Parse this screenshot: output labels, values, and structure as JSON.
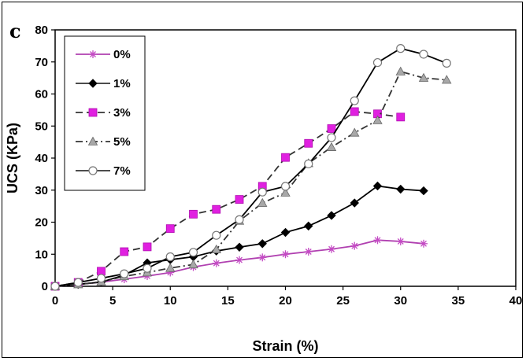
{
  "chart_data": {
    "type": "line",
    "panel_label": "c",
    "xlabel": "Strain (%)",
    "ylabel": "UCS (KPa)",
    "xlim": [
      0,
      40
    ],
    "ylim": [
      0,
      80
    ],
    "x_ticks": [
      "0",
      "5",
      "10",
      "15",
      "20",
      "25",
      "30",
      "35",
      "40"
    ],
    "y_ticks": [
      "0",
      "10",
      "20",
      "30",
      "40",
      "50",
      "60",
      "70",
      "80"
    ],
    "grid": false,
    "legend_position": "top-left",
    "series": [
      {
        "name": "0%",
        "color": "#c44bc4",
        "marker": "asterisk",
        "dash": "solid",
        "x": [
          0,
          2,
          4,
          6,
          8,
          10,
          12,
          14,
          16,
          18,
          20,
          22,
          24,
          26,
          28,
          30,
          32
        ],
        "y": [
          0,
          0.6,
          1.3,
          2.2,
          3.2,
          4.3,
          6.0,
          7.2,
          8.2,
          9.0,
          10.0,
          10.8,
          11.6,
          12.6,
          14.4,
          14.0,
          13.3
        ]
      },
      {
        "name": "1%",
        "color": "#000000",
        "marker": "diamond",
        "dash": "solid",
        "x": [
          0,
          2,
          4,
          6,
          8,
          10,
          12,
          14,
          16,
          18,
          20,
          22,
          24,
          26,
          28,
          30,
          32
        ],
        "y": [
          0,
          0.6,
          1.3,
          3.5,
          7.3,
          8.3,
          9.2,
          11.0,
          12.2,
          13.3,
          16.8,
          18.8,
          22.1,
          26.0,
          31.3,
          30.3,
          29.8
        ]
      },
      {
        "name": "3%",
        "color": "#e020e0",
        "marker": "square",
        "dash": "dash",
        "x": [
          0,
          2,
          4,
          6,
          8,
          10,
          12,
          14,
          16,
          18,
          20,
          22,
          24,
          26,
          28,
          30
        ],
        "y": [
          0,
          1.2,
          4.7,
          10.8,
          12.3,
          18.0,
          22.5,
          24.0,
          27.1,
          31.2,
          40.2,
          44.6,
          49.2,
          54.5,
          53.8,
          52.8
        ]
      },
      {
        "name": "5%",
        "color": "#999999",
        "marker": "triangle",
        "dash": "dashdot",
        "x": [
          0,
          2,
          4,
          6,
          8,
          10,
          12,
          14,
          16,
          18,
          20,
          22,
          24,
          26,
          28,
          30,
          32,
          34
        ],
        "y": [
          0,
          0.6,
          1.4,
          3.1,
          4.3,
          5.7,
          6.8,
          11.5,
          20.4,
          26.0,
          29.2,
          38.4,
          43.4,
          47.9,
          51.8,
          67.0,
          65.0,
          64.4
        ]
      },
      {
        "name": "7%",
        "color": "#000000",
        "marker": "circle",
        "dash": "solid",
        "x": [
          0,
          2,
          4,
          6,
          8,
          10,
          12,
          14,
          16,
          18,
          20,
          22,
          24,
          26,
          28,
          30,
          32,
          34
        ],
        "y": [
          0,
          1.2,
          2.5,
          3.9,
          5.6,
          9.2,
          10.6,
          15.9,
          20.8,
          29.4,
          31.2,
          38.2,
          46.4,
          57.9,
          69.8,
          74.2,
          72.4,
          69.6
        ]
      }
    ]
  }
}
